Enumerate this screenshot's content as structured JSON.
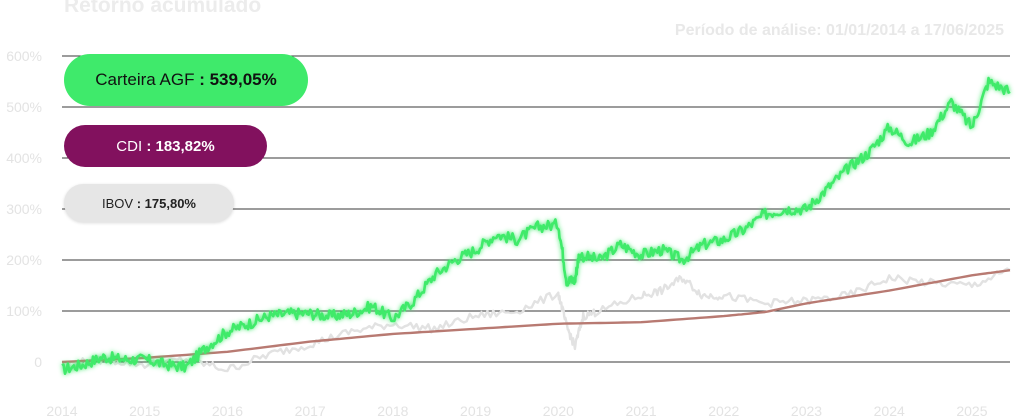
{
  "header": {
    "title": "Retorno acumulado",
    "period": "Período de análise: 01/01/2014 a 17/06/2025"
  },
  "legend": [
    {
      "name": "Carteira AGF",
      "value": ": 539,05%",
      "color": "#3fea6b"
    },
    {
      "name": "CDI",
      "value": ": 183,82%",
      "color": "#82115e"
    },
    {
      "name": "IBOV",
      "value": ": 175,80%",
      "color": "#e6e6e6"
    }
  ],
  "chart_data": {
    "type": "line",
    "title": "Retorno acumulado",
    "ylim": [
      0,
      600
    ],
    "yticks": [
      "600%",
      "500%",
      "400%",
      "300%",
      "200%",
      "100%",
      "0"
    ],
    "xticks": [
      "2014",
      "2015",
      "2016",
      "2017",
      "2018",
      "2019",
      "2020",
      "2021",
      "2022",
      "2023",
      "2024",
      "2025"
    ],
    "grid": true,
    "legend_position": "top-left",
    "series": [
      {
        "name": "Carteira AGF",
        "color": "#3fea6b",
        "x": [
          2014.0,
          2014.25,
          2014.5,
          2014.75,
          2015.0,
          2015.25,
          2015.5,
          2015.75,
          2016.0,
          2016.25,
          2016.5,
          2016.75,
          2017.0,
          2017.25,
          2017.5,
          2017.75,
          2018.0,
          2018.25,
          2018.5,
          2018.75,
          2019.0,
          2019.25,
          2019.5,
          2019.75,
          2020.0,
          2020.1,
          2020.2,
          2020.25,
          2020.5,
          2020.75,
          2021.0,
          2021.25,
          2021.5,
          2021.75,
          2022.0,
          2022.25,
          2022.5,
          2022.75,
          2023.0,
          2023.25,
          2023.5,
          2023.75,
          2024.0,
          2024.25,
          2024.5,
          2024.75,
          2025.0,
          2025.2,
          2025.46
        ],
        "values": [
          -15,
          -5,
          10,
          5,
          5,
          -5,
          -10,
          30,
          60,
          75,
          90,
          95,
          95,
          90,
          95,
          110,
          85,
          120,
          170,
          200,
          220,
          250,
          240,
          265,
          270,
          160,
          160,
          210,
          200,
          230,
          210,
          220,
          200,
          230,
          240,
          260,
          290,
          300,
          300,
          340,
          380,
          410,
          460,
          430,
          450,
          510,
          460,
          550,
          530
        ]
      },
      {
        "name": "CDI",
        "color": "#b87a72",
        "x": [
          2014.0,
          2015.0,
          2016.0,
          2017.0,
          2018.0,
          2019.0,
          2020.0,
          2021.0,
          2022.0,
          2022.5,
          2023.0,
          2024.0,
          2025.0,
          2025.46
        ],
        "values": [
          0,
          8,
          20,
          40,
          55,
          65,
          75,
          78,
          90,
          98,
          115,
          140,
          170,
          180
        ]
      },
      {
        "name": "IBOV",
        "color": "#e2e2e2",
        "x": [
          2014.0,
          2014.5,
          2015.0,
          2015.5,
          2016.0,
          2016.5,
          2017.0,
          2017.5,
          2018.0,
          2018.5,
          2019.0,
          2019.5,
          2020.0,
          2020.1,
          2020.2,
          2020.3,
          2020.5,
          2021.0,
          2021.25,
          2021.5,
          2021.75,
          2022.0,
          2022.5,
          2023.0,
          2023.5,
          2024.0,
          2024.5,
          2025.0,
          2025.46
        ],
        "values": [
          -5,
          5,
          -5,
          5,
          -15,
          15,
          35,
          60,
          75,
          65,
          90,
          100,
          135,
          70,
          30,
          90,
          100,
          130,
          140,
          165,
          130,
          130,
          115,
          120,
          130,
          165,
          155,
          150,
          180
        ]
      }
    ]
  }
}
